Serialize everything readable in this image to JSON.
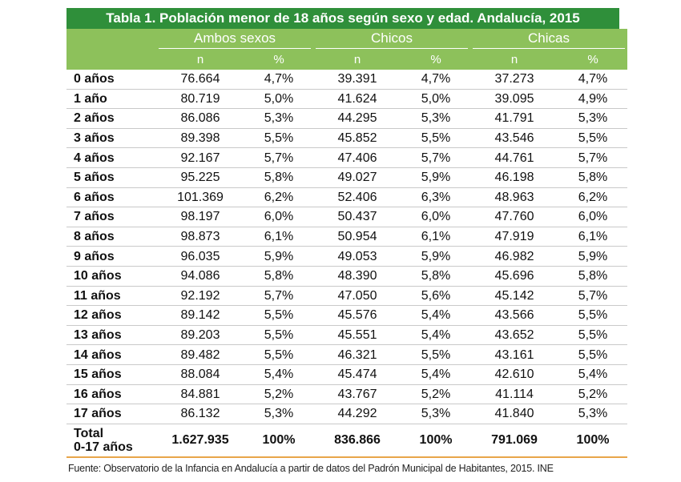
{
  "title": "Tabla 1. Población menor de 18 años según sexo y edad. Andalucía, 2015",
  "groups": [
    "Ambos sexos",
    "Chicos",
    "Chicas"
  ],
  "subheaders": [
    "n",
    "%",
    "n",
    "%",
    "n",
    "%"
  ],
  "rows": [
    {
      "age": "0 años",
      "cells": [
        "76.664",
        "4,7%",
        "39.391",
        "4,7%",
        "37.273",
        "4,7%"
      ]
    },
    {
      "age": "1 año",
      "cells": [
        "80.719",
        "5,0%",
        "41.624",
        "5,0%",
        "39.095",
        "4,9%"
      ]
    },
    {
      "age": "2 años",
      "cells": [
        "86.086",
        "5,3%",
        "44.295",
        "5,3%",
        "41.791",
        "5,3%"
      ]
    },
    {
      "age": "3 años",
      "cells": [
        "89.398",
        "5,5%",
        "45.852",
        "5,5%",
        "43.546",
        "5,5%"
      ]
    },
    {
      "age": "4 años",
      "cells": [
        "92.167",
        "5,7%",
        "47.406",
        "5,7%",
        "44.761",
        "5,7%"
      ]
    },
    {
      "age": "5 años",
      "cells": [
        "95.225",
        "5,8%",
        "49.027",
        "5,9%",
        "46.198",
        "5,8%"
      ]
    },
    {
      "age": "6 años",
      "cells": [
        "101.369",
        "6,2%",
        "52.406",
        "6,3%",
        "48.963",
        "6,2%"
      ]
    },
    {
      "age": "7 años",
      "cells": [
        "98.197",
        "6,0%",
        "50.437",
        "6,0%",
        "47.760",
        "6,0%"
      ]
    },
    {
      "age": "8 años",
      "cells": [
        "98.873",
        "6,1%",
        "50.954",
        "6,1%",
        "47.919",
        "6,1%"
      ]
    },
    {
      "age": "9 años",
      "cells": [
        "96.035",
        "5,9%",
        "49.053",
        "5,9%",
        "46.982",
        "5,9%"
      ]
    },
    {
      "age": "10 años",
      "cells": [
        "94.086",
        "5,8%",
        "48.390",
        "5,8%",
        "45.696",
        "5,8%"
      ]
    },
    {
      "age": "11 años",
      "cells": [
        "92.192",
        "5,7%",
        "47.050",
        "5,6%",
        "45.142",
        "5,7%"
      ]
    },
    {
      "age": "12 años",
      "cells": [
        "89.142",
        "5,5%",
        "45.576",
        "5,4%",
        "43.566",
        "5,5%"
      ]
    },
    {
      "age": "13 años",
      "cells": [
        "89.203",
        "5,5%",
        "45.551",
        "5,4%",
        "43.652",
        "5,5%"
      ]
    },
    {
      "age": "14 años",
      "cells": [
        "89.482",
        "5,5%",
        "46.321",
        "5,5%",
        "43.161",
        "5,5%"
      ]
    },
    {
      "age": "15 años",
      "cells": [
        "88.084",
        "5,4%",
        "45.474",
        "5,4%",
        "42.610",
        "5,4%"
      ]
    },
    {
      "age": "16 años",
      "cells": [
        "84.881",
        "5,2%",
        "43.767",
        "5,2%",
        "41.114",
        "5,2%"
      ]
    },
    {
      "age": "17 años",
      "cells": [
        "86.132",
        "5,3%",
        "44.292",
        "5,3%",
        "41.840",
        "5,3%"
      ]
    }
  ],
  "total": {
    "label_line1": "Total",
    "label_line2": "0-17 años",
    "cells": [
      "1.627.935",
      "100%",
      "836.866",
      "100%",
      "791.069",
      "100%"
    ]
  },
  "footnote": "Fuente: Observatorio de la Infancia en Andalucía a partir de datos del Padrón Municipal de Habitantes, 2015. INE",
  "colors": {
    "title_bg": "#2f8f3a",
    "header_bg": "#8dc15b",
    "row_rule": "#c9c9c9",
    "total_rule": "#e8a64a"
  }
}
